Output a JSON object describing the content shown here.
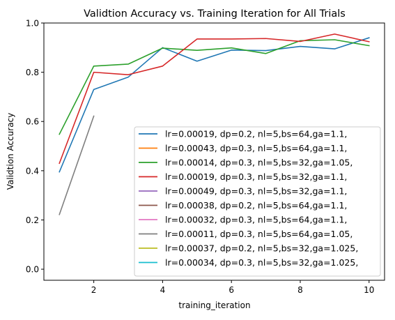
{
  "chart_data": {
    "type": "line",
    "title": "Validtion Accuracy vs. Training Iteration for All Trials",
    "xlabel": "training_iteration",
    "ylabel": "Validtion Accuracy",
    "xlim": [
      0.55,
      10.45
    ],
    "ylim": [
      -0.045,
      1.0
    ],
    "xticks": [
      2,
      4,
      6,
      8,
      10
    ],
    "yticks": [
      0.0,
      0.2,
      0.4,
      0.6,
      0.8,
      1.0
    ],
    "xtick_labels": [
      "2",
      "4",
      "6",
      "8",
      "10"
    ],
    "ytick_labels": [
      "0.0",
      "0.2",
      "0.4",
      "0.6",
      "0.8",
      "1.0"
    ],
    "grid": false,
    "legend_position": "lower-right",
    "series": [
      {
        "name": "lr=0.00019, dp=0.2, nl=5,bs=64,ga=1.1,",
        "color": "#1f77b4",
        "x": [
          1,
          2,
          3,
          4,
          5,
          6,
          7,
          8,
          9,
          10
        ],
        "y": [
          0.395,
          0.73,
          0.78,
          0.9,
          0.845,
          0.89,
          0.888,
          0.905,
          0.895,
          0.94
        ]
      },
      {
        "name": "lr=0.00043, dp=0.3, nl=5,bs=64,ga=1.1,",
        "color": "#ff7f0e",
        "x": [],
        "y": []
      },
      {
        "name": "lr=0.00014, dp=0.3, nl=5,bs=32,ga=1.05,",
        "color": "#2ca02c",
        "x": [
          1,
          2,
          3,
          4,
          5,
          6,
          7,
          8,
          9,
          10
        ],
        "y": [
          0.548,
          0.825,
          0.833,
          0.898,
          0.889,
          0.899,
          0.876,
          0.928,
          0.932,
          0.908
        ]
      },
      {
        "name": "lr=0.00019, dp=0.3, nl=5,bs=32,ga=1.1,",
        "color": "#d62728",
        "x": [
          1,
          2,
          3,
          4,
          5,
          6,
          7,
          8,
          9,
          10
        ],
        "y": [
          0.43,
          0.8,
          0.79,
          0.825,
          0.935,
          0.935,
          0.937,
          0.925,
          0.955,
          0.924
        ]
      },
      {
        "name": "lr=0.00049, dp=0.3, nl=5,bs=32,ga=1.1,",
        "color": "#9467bd",
        "x": [],
        "y": []
      },
      {
        "name": "lr=0.00038, dp=0.2, nl=5,bs=64,ga=1.1,",
        "color": "#8c564b",
        "x": [],
        "y": []
      },
      {
        "name": "lr=0.00032, dp=0.3, nl=5,bs=64,ga=1.1,",
        "color": "#e377c2",
        "x": [],
        "y": []
      },
      {
        "name": "lr=0.00011, dp=0.3, nl=5,bs=64,ga=1.05,",
        "color": "#7f7f7f",
        "x": [
          1,
          2
        ],
        "y": [
          0.222,
          0.622
        ]
      },
      {
        "name": "lr=0.00037, dp=0.2, nl=5,bs=32,ga=1.025,",
        "color": "#bcbd22",
        "x": [],
        "y": []
      },
      {
        "name": "lr=0.00034, dp=0.3, nl=5,bs=32,ga=1.025,",
        "color": "#17becf",
        "x": [],
        "y": []
      }
    ]
  }
}
